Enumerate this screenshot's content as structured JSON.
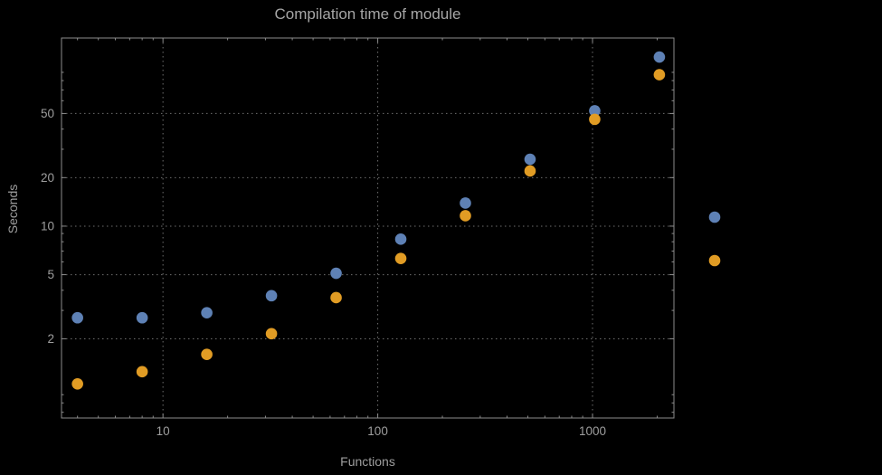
{
  "colors": {
    "background": "#000000",
    "frame": "#8c8c8c",
    "grid": "#6e6e6e",
    "text": "#9e9e9e",
    "series_blue": "#5e81b5",
    "series_orange": "#e19c24"
  },
  "chart_data": {
    "type": "scatter",
    "title": "Compilation time of module",
    "xlabel": "Functions",
    "ylabel": "Seconds",
    "x_scale": "log",
    "y_scale": "log",
    "grid": true,
    "x_ticks": [
      10,
      100,
      1000
    ],
    "y_ticks": [
      2,
      5,
      10,
      20,
      50
    ],
    "x_range": [
      3.37,
      2394
    ],
    "y_range": [
      0.645,
      147
    ],
    "series": [
      {
        "name": "blue",
        "color": "#5e81b5",
        "points": [
          [
            4,
            2.7
          ],
          [
            8,
            2.7
          ],
          [
            16,
            2.9
          ],
          [
            32,
            3.7
          ],
          [
            64,
            5.1
          ],
          [
            128,
            8.3
          ],
          [
            256,
            13.9
          ],
          [
            512,
            26
          ],
          [
            1024,
            52
          ],
          [
            2048,
            112
          ]
        ]
      },
      {
        "name": "orange",
        "color": "#e19c24",
        "points": [
          [
            4,
            1.05
          ],
          [
            8,
            1.25
          ],
          [
            16,
            1.6
          ],
          [
            32,
            2.15
          ],
          [
            64,
            3.6
          ],
          [
            128,
            6.3
          ],
          [
            256,
            11.6
          ],
          [
            512,
            22
          ],
          [
            1024,
            46
          ],
          [
            2048,
            87
          ]
        ]
      }
    ],
    "legend": {
      "position": "right-of-plot",
      "entries": [
        {
          "label": "",
          "color": "#5e81b5"
        },
        {
          "label": "",
          "color": "#e19c24"
        }
      ]
    }
  }
}
